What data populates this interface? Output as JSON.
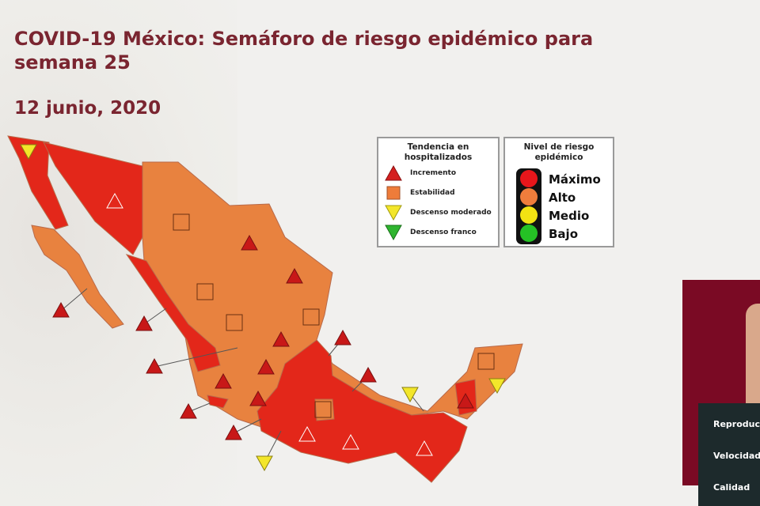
{
  "title": "COVID-19 México: Semáforo de riesgo epidémico para semana 25",
  "date": "12 junio, 2020",
  "legend_trend": {
    "title": "Tendencia en hospitalizados",
    "items": [
      {
        "label": "Incremento",
        "icon": "red-triangle-up",
        "color": "#d42020"
      },
      {
        "label": "Estabilidad",
        "icon": "orange-square",
        "color": "#ee7c3a"
      },
      {
        "label": "Descenso moderado",
        "icon": "yellow-triangle-down",
        "color": "#f3e62a"
      },
      {
        "label": "Descenso franco",
        "icon": "green-triangle-down",
        "color": "#2fb52f"
      }
    ]
  },
  "legend_risk": {
    "title": "Nivel de riesgo epidémico",
    "levels": [
      {
        "label": "Máximo",
        "color": "#e8161b"
      },
      {
        "label": "Alto",
        "color": "#ef7d3c"
      },
      {
        "label": "Medio",
        "color": "#f2e313"
      },
      {
        "label": "Bajo",
        "color": "#25c225"
      }
    ]
  },
  "map": {
    "state_colors": {
      "maximo": "#e3271a",
      "alto": "#e8823f"
    },
    "marker_trends": [
      "incremento",
      "incremento",
      "incremento",
      "incremento",
      "incremento",
      "incremento",
      "incremento",
      "incremento",
      "incremento",
      "incremento",
      "incremento",
      "incremento",
      "incremento",
      "incremento",
      "incremento",
      "incremento",
      "incremento",
      "incremento",
      "estabilidad",
      "estabilidad",
      "estabilidad",
      "estabilidad",
      "estabilidad",
      "estabilidad",
      "descenso_moderado",
      "descenso_moderado",
      "descenso_moderado",
      "descenso_moderado"
    ]
  },
  "player_menu": {
    "items": [
      "Reproducción",
      "Velocidad",
      "Calidad"
    ]
  }
}
